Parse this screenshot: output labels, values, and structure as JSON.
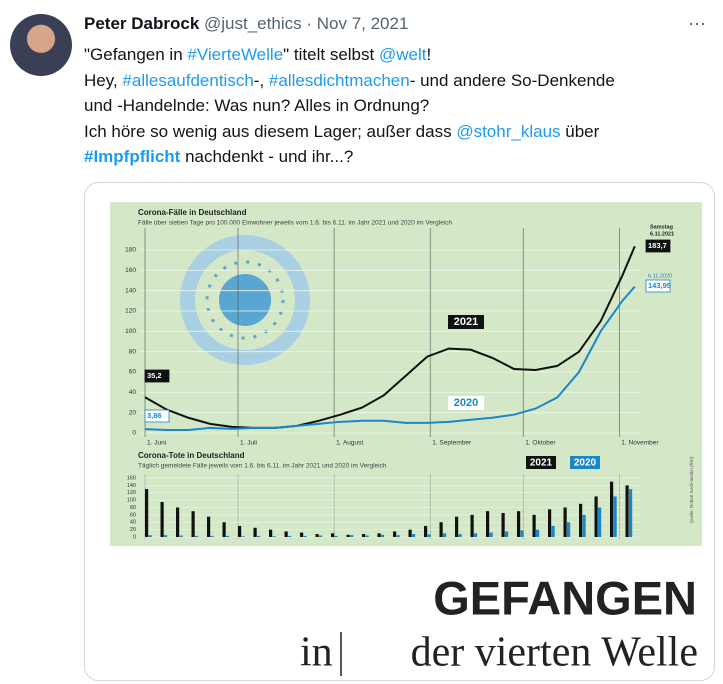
{
  "tweet": {
    "author": "Peter Dabrock",
    "handle": "@just_ethics",
    "separator": "·",
    "date": "Nov 7, 2021",
    "lines": [
      [
        {
          "text": "\"Gefangen in "
        },
        {
          "text": "#VierteWelle",
          "link": true
        },
        {
          "text": "\" titelt selbst "
        },
        {
          "text": "@welt",
          "link": true
        },
        {
          "text": "!"
        }
      ],
      [
        {
          "text": "Hey, "
        },
        {
          "text": "#allesaufdentisch",
          "link": true
        },
        {
          "text": "-, "
        },
        {
          "text": "#allesdichtmachen",
          "link": true
        },
        {
          "text": "- und andere So-Denkende"
        }
      ],
      [
        {
          "text": "und -Handelnde: Was nun? Alles in Ordnung?"
        }
      ],
      [
        {
          "text": "Ich höre so wenig aus diesem Lager; außer dass "
        },
        {
          "text": "@stohr_klaus",
          "link": true
        },
        {
          "text": " über"
        }
      ],
      [
        {
          "text": "#Impfpflicht",
          "link": true,
          "bold": true
        },
        {
          "text": " nachdenkt - und ihr...?"
        }
      ]
    ]
  },
  "image": {
    "cases": {
      "type": "line",
      "title": "Corona-Fälle in Deutschland",
      "subtitle": "Fälle über sieben Tage pro 100.000 Einwohner jeweils vom 1.6. bis 6.11. im Jahr 2021 und 2020 im Vergleich",
      "x": [
        0,
        7,
        14,
        21,
        28,
        35,
        42,
        49,
        56,
        63,
        70,
        77,
        84,
        91,
        98,
        105,
        112,
        119,
        126,
        133,
        140,
        147,
        154,
        158
      ],
      "xlim": [
        0,
        160
      ],
      "xticks": [
        {
          "value": 0,
          "label": "1. Juni"
        },
        {
          "value": 30,
          "label": "1. Juli"
        },
        {
          "value": 61,
          "label": "1. August"
        },
        {
          "value": 92,
          "label": "1. September"
        },
        {
          "value": 122,
          "label": "1. Oktober"
        },
        {
          "value": 153,
          "label": "1. November"
        }
      ],
      "ylim": [
        0,
        180
      ],
      "yticks": [
        0,
        20,
        40,
        60,
        80,
        100,
        120,
        140,
        160,
        180
      ],
      "grid": true,
      "series": [
        {
          "name": "2021",
          "color": "#111111",
          "values": [
            35.2,
            23,
            15,
            9,
            6,
            5,
            5,
            7,
            12,
            18,
            25,
            37,
            56,
            75,
            83,
            82,
            74,
            63,
            62,
            66,
            80,
            110,
            155,
            183.7
          ],
          "value_labels": [
            "35,2",
            null,
            null,
            null,
            null,
            null,
            null,
            null,
            null,
            null,
            null,
            null,
            null,
            null,
            null,
            null,
            null,
            null,
            null,
            null,
            null,
            null,
            null,
            "183,7"
          ]
        },
        {
          "name": "2020",
          "color": "#1a87c9",
          "values": [
            3.86,
            3,
            3,
            5,
            4,
            5,
            5,
            7,
            9,
            11,
            12,
            12,
            10,
            10,
            11,
            13,
            15,
            18,
            24,
            35,
            60,
            100,
            130,
            143.95
          ],
          "value_labels": [
            "3,86",
            null,
            null,
            null,
            null,
            null,
            null,
            null,
            null,
            null,
            null,
            null,
            null,
            null,
            null,
            null,
            null,
            null,
            null,
            null,
            null,
            null,
            null,
            "143,95"
          ]
        }
      ],
      "annotations": [
        "Samstag",
        "6.11.2021",
        "6.11.2020"
      ]
    },
    "deaths": {
      "type": "bar",
      "title": "Corona-Tote in Deutschland",
      "subtitle": "Täglich gemeldete Fälle jeweils vom 1.6. bis 6.11. im Jahr 2021 und 2020 im Vergleich",
      "x": [
        0,
        5,
        10,
        15,
        20,
        25,
        30,
        35,
        40,
        45,
        50,
        55,
        60,
        65,
        70,
        75,
        80,
        85,
        90,
        95,
        100,
        105,
        110,
        115,
        120,
        125,
        130,
        135,
        140,
        145,
        150,
        155
      ],
      "xlim": [
        0,
        160
      ],
      "ylim": [
        0,
        160
      ],
      "yticks": [
        0,
        20,
        40,
        60,
        80,
        100,
        120,
        140,
        160
      ],
      "series": [
        {
          "name": "2021",
          "color": "#111111",
          "values": [
            130,
            95,
            80,
            70,
            55,
            40,
            30,
            25,
            20,
            15,
            12,
            8,
            10,
            6,
            8,
            10,
            15,
            20,
            30,
            40,
            55,
            60,
            70,
            65,
            70,
            60,
            75,
            80,
            90,
            110,
            150,
            140
          ]
        },
        {
          "name": "2020",
          "color": "#1a87c9",
          "values": [
            5,
            5,
            4,
            3,
            3,
            3,
            2,
            3,
            2,
            3,
            3,
            4,
            3,
            5,
            4,
            6,
            5,
            8,
            7,
            10,
            8,
            10,
            12,
            15,
            18,
            20,
            30,
            40,
            60,
            80,
            110,
            130
          ]
        }
      ],
      "source": "Quelle: Robert Koch-Institut (RKI)"
    },
    "headline": "GEFANGEN",
    "subheadline_1": "in",
    "subheadline_2": "der vierten Welle"
  }
}
